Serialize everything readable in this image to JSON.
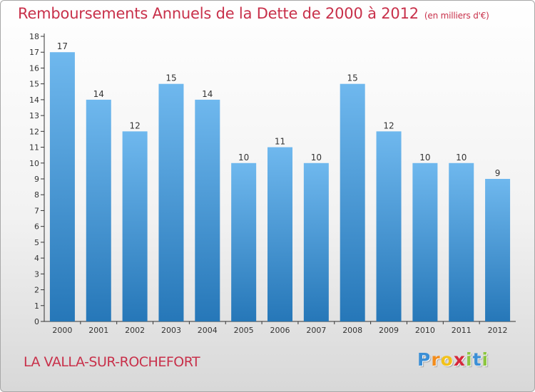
{
  "chart_data": {
    "type": "bar",
    "title": "Remboursements Annuels de la Dette de 2000 à 2012",
    "unit_note": "(en milliers d'€)",
    "categories": [
      "2000",
      "2001",
      "2002",
      "2003",
      "2004",
      "2005",
      "2006",
      "2007",
      "2008",
      "2009",
      "2010",
      "2011",
      "2012"
    ],
    "values": [
      17,
      14,
      12,
      15,
      14,
      10,
      11,
      10,
      15,
      12,
      10,
      10,
      9
    ],
    "data_labels": [
      "17",
      "14",
      "12",
      "15",
      "14",
      "10",
      "11",
      "10",
      "15",
      "12",
      "10",
      "10",
      "9"
    ],
    "y_ticks": [
      "0",
      "1",
      "2",
      "3",
      "4",
      "5",
      "6",
      "7",
      "8",
      "9",
      "10",
      "11",
      "12",
      "13",
      "14",
      "15",
      "16",
      "17",
      "18"
    ],
    "ylim": [
      0,
      18
    ],
    "grid": false,
    "bar_color_light": "#6fb8ee",
    "bar_color_dark": "#2677b8"
  },
  "footer": {
    "place_name": "LA VALLA-SUR-ROCHEFORT",
    "brand_letters": [
      "P",
      "r",
      "o",
      "x",
      "i",
      "t",
      "i"
    ],
    "brand_colors": [
      "#3b8fd6",
      "#f28c1c",
      "#f2c21b",
      "#d6283c",
      "#8cc63f",
      "#3b8fd6",
      "#8cc63f"
    ]
  },
  "colors": {
    "title": "#c8304a",
    "axis": "#333333"
  }
}
